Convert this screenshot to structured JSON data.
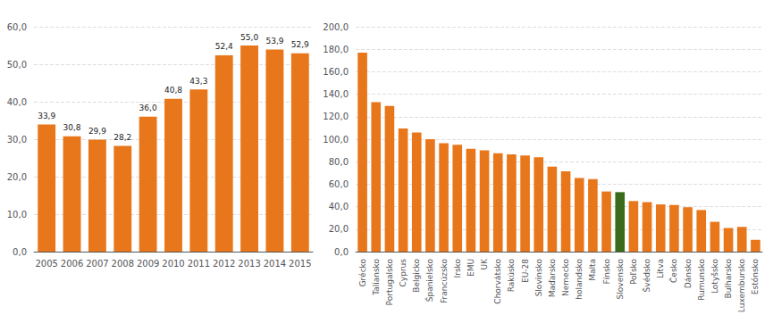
{
  "chart_data": [
    {
      "type": "bar",
      "categories": [
        "2005",
        "2006",
        "2007",
        "2008",
        "2009",
        "2010",
        "2011",
        "2012",
        "2013",
        "2014",
        "2015"
      ],
      "values": [
        33.9,
        30.8,
        29.9,
        28.2,
        36.0,
        40.8,
        43.3,
        52.4,
        55.0,
        53.9,
        52.9
      ],
      "value_labels": [
        "33,9",
        "30,8",
        "29,9",
        "28,2",
        "36,0",
        "40,8",
        "43,3",
        "52,4",
        "55,0",
        "53,9",
        "52,9"
      ],
      "data_labels": true,
      "color": "#E8761A",
      "ylim": [
        0,
        60
      ],
      "yticks": [
        {
          "value": 0,
          "label": "0,0"
        },
        {
          "value": 10,
          "label": "10,0"
        },
        {
          "value": 20,
          "label": "20,0"
        },
        {
          "value": 30,
          "label": "30,0"
        },
        {
          "value": 40,
          "label": "40,0"
        },
        {
          "value": 50,
          "label": "50,0"
        },
        {
          "value": 60,
          "label": "60,0"
        }
      ],
      "grid": true
    },
    {
      "type": "bar",
      "categories": [
        "Grécko",
        "Taliansko",
        "Portugalsko",
        "Cyprus",
        "Belgicko",
        "Španielsko",
        "Francúzsko",
        "Irsko",
        "EMU",
        "UK",
        "Chorvátsko",
        "Rakúsko",
        "EU-28",
        "Slovinsko",
        "Maďarsko",
        "Nemecko",
        "holandsko",
        "Malta",
        "Fínsko",
        "Slovensko",
        "Poľsko",
        "Švédsko",
        "Litva",
        "Česko",
        "Dánsko",
        "Rumunsko",
        "Lotyšsko",
        "Bulharsko",
        "Luxembursko",
        "Estónsko"
      ],
      "values": [
        177.0,
        133.0,
        129.5,
        109.5,
        106.0,
        100.0,
        96.5,
        95.0,
        91.5,
        90.0,
        87.5,
        86.5,
        85.5,
        84.0,
        75.5,
        71.5,
        65.5,
        64.5,
        53.5,
        52.9,
        45.0,
        44.0,
        42.0,
        41.5,
        39.5,
        37.0,
        26.5,
        21.0,
        22.0,
        10.5
      ],
      "colors": [
        "#E8761A",
        "#E8761A",
        "#E8761A",
        "#E8761A",
        "#E8761A",
        "#E8761A",
        "#E8761A",
        "#E8761A",
        "#E8761A",
        "#E8761A",
        "#E8761A",
        "#E8761A",
        "#E8761A",
        "#E8761A",
        "#E8761A",
        "#E8761A",
        "#E8761A",
        "#E8761A",
        "#E8761A",
        "#3A6B1A",
        "#E8761A",
        "#E8761A",
        "#E8761A",
        "#E8761A",
        "#E8761A",
        "#E8761A",
        "#E8761A",
        "#E8761A",
        "#E8761A",
        "#E8761A"
      ],
      "ylim": [
        0,
        200
      ],
      "yticks": [
        {
          "value": 0,
          "label": "0,0"
        },
        {
          "value": 20,
          "label": "20,0"
        },
        {
          "value": 40,
          "label": "40,0"
        },
        {
          "value": 60,
          "label": "60,0"
        },
        {
          "value": 80,
          "label": "80,0"
        },
        {
          "value": 100,
          "label": "100,0"
        },
        {
          "value": 120,
          "label": "120,0"
        },
        {
          "value": 140,
          "label": "140,0"
        },
        {
          "value": 160,
          "label": "160,0"
        },
        {
          "value": 180,
          "label": "180,0"
        },
        {
          "value": 200,
          "label": "200,0"
        }
      ],
      "grid": true
    }
  ]
}
